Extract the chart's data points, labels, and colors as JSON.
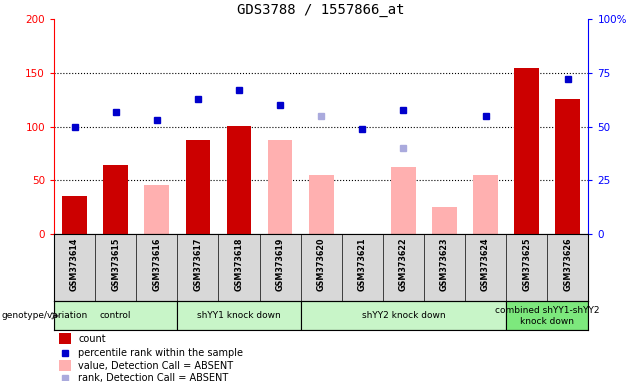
{
  "title": "GDS3788 / 1557866_at",
  "samples": [
    "GSM373614",
    "GSM373615",
    "GSM373616",
    "GSM373617",
    "GSM373618",
    "GSM373619",
    "GSM373620",
    "GSM373621",
    "GSM373622",
    "GSM373623",
    "GSM373624",
    "GSM373625",
    "GSM373626"
  ],
  "count_values": [
    36,
    64,
    null,
    88,
    101,
    null,
    null,
    null,
    null,
    null,
    null,
    155,
    126
  ],
  "rank_values": [
    50,
    57,
    53,
    63,
    67,
    60,
    null,
    49,
    58,
    null,
    55,
    null,
    72
  ],
  "absent_value": [
    null,
    null,
    46,
    null,
    null,
    88,
    55,
    null,
    63,
    25,
    55,
    null,
    null
  ],
  "absent_rank": [
    null,
    null,
    null,
    null,
    null,
    null,
    55,
    null,
    40,
    null,
    null,
    null,
    null
  ],
  "groups": [
    {
      "label": "control",
      "start": 0,
      "end": 3,
      "color": "#c8f5c8"
    },
    {
      "label": "shYY1 knock down",
      "start": 3,
      "end": 6,
      "color": "#c8f5c8"
    },
    {
      "label": "shYY2 knock down",
      "start": 6,
      "end": 11,
      "color": "#c8f5c8"
    },
    {
      "label": "combined shYY1-shYY2\nknock down",
      "start": 11,
      "end": 13,
      "color": "#7de87d"
    }
  ],
  "left_ylim": [
    0,
    200
  ],
  "right_ylim": [
    0,
    100
  ],
  "left_yticks": [
    0,
    50,
    100,
    150,
    200
  ],
  "right_yticks": [
    0,
    25,
    50,
    75,
    100
  ],
  "right_yticklabels": [
    "0",
    "25",
    "50",
    "75",
    "100%"
  ],
  "bar_color_count": "#cc0000",
  "bar_color_absent": "#ffb0b0",
  "dot_color_rank": "#0000cc",
  "dot_color_absent_rank": "#aaaadd",
  "bg_color": "#d8d8d8",
  "dotted_grid_vals": [
    50,
    100,
    150
  ],
  "legend_items": [
    {
      "label": "count",
      "color": "#cc0000",
      "type": "bar"
    },
    {
      "label": "percentile rank within the sample",
      "color": "#0000cc",
      "type": "dot"
    },
    {
      "label": "value, Detection Call = ABSENT",
      "color": "#ffb0b0",
      "type": "bar"
    },
    {
      "label": "rank, Detection Call = ABSENT",
      "color": "#aaaadd",
      "type": "dot"
    }
  ]
}
